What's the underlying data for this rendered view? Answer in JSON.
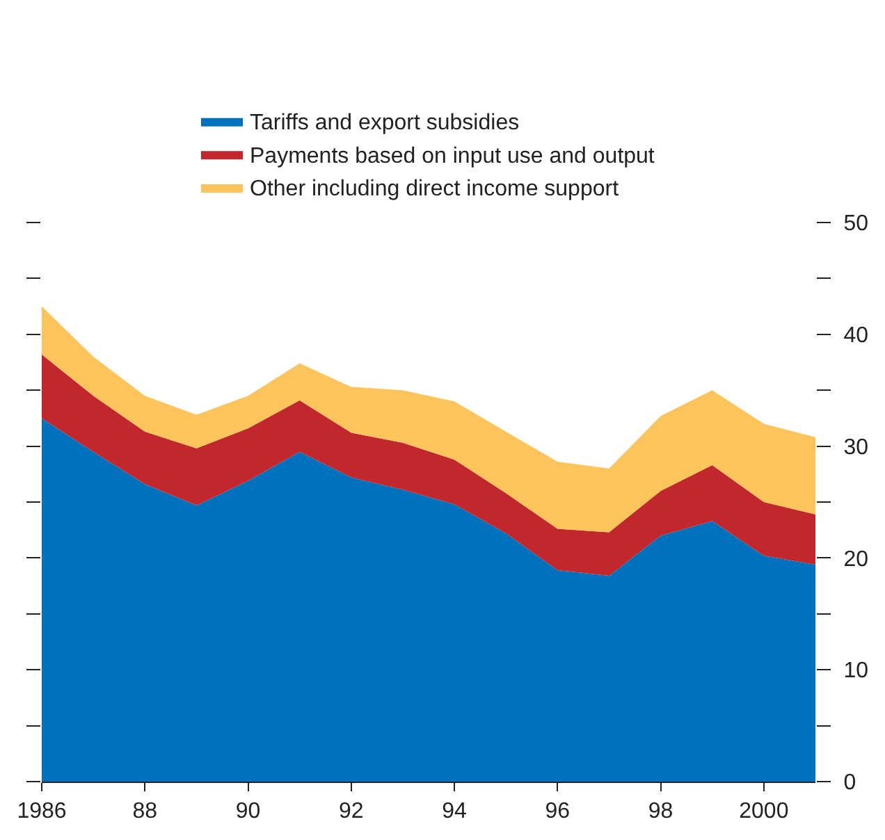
{
  "chart_data": {
    "type": "area",
    "stacked": true,
    "x": [
      1986,
      1987,
      1988,
      1989,
      1990,
      1991,
      1992,
      1993,
      1994,
      1995,
      1996,
      1997,
      1998,
      1999,
      2000,
      2001
    ],
    "series": [
      {
        "name": "Tariffs and export subsidies",
        "color": "#0071bc",
        "values": [
          32.5,
          29.5,
          26.6,
          24.7,
          26.9,
          29.5,
          27.2,
          26.1,
          24.8,
          22.2,
          18.9,
          18.4,
          22.0,
          23.3,
          20.2,
          19.4
        ]
      },
      {
        "name": "Payments based on input use and output",
        "color": "#c1272d",
        "values": [
          5.7,
          5.0,
          4.7,
          5.1,
          4.7,
          4.6,
          4.0,
          4.2,
          4.0,
          3.6,
          3.7,
          3.9,
          4.0,
          5.0,
          4.8,
          4.5
        ]
      },
      {
        "name": "Other including direct income support",
        "color": "#fdc45c",
        "values": [
          4.3,
          3.5,
          3.2,
          3.0,
          2.9,
          3.3,
          4.1,
          4.7,
          5.2,
          5.5,
          6.0,
          5.7,
          6.7,
          6.7,
          7.0,
          6.9
        ]
      }
    ],
    "xlim": [
      1986,
      2001
    ],
    "xticks": [
      1986,
      {
        "value": 1988,
        "label": "88"
      },
      {
        "value": 1990,
        "label": "90"
      },
      {
        "value": 1992,
        "label": "92"
      },
      {
        "value": 1994,
        "label": "94"
      },
      {
        "value": 1996,
        "label": "96"
      },
      {
        "value": 1998,
        "label": "98"
      },
      2000
    ],
    "ylim": [
      0,
      50
    ],
    "yticks": [
      0,
      {
        "value": 5,
        "label": null
      },
      10,
      {
        "value": 15,
        "label": null
      },
      20,
      {
        "value": 25,
        "label": null
      },
      30,
      {
        "value": 35,
        "label": null
      },
      40,
      {
        "value": 45,
        "label": null
      },
      50
    ],
    "grid": false,
    "legend": "top"
  }
}
